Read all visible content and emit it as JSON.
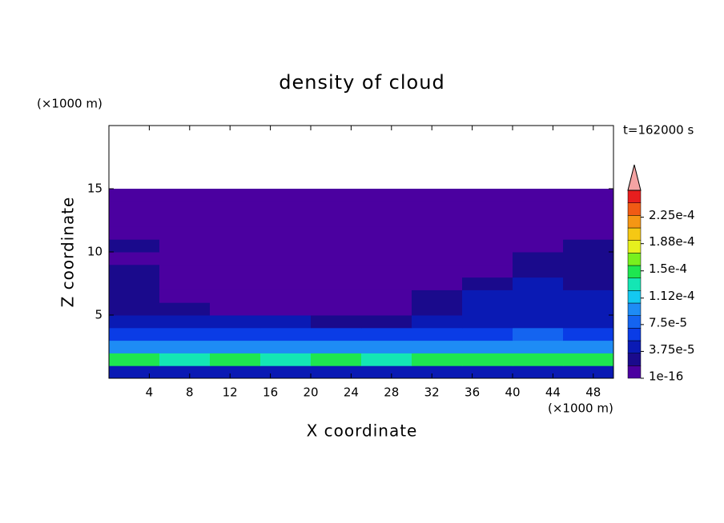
{
  "chart_data": {
    "type": "contour",
    "title": "density of cloud",
    "x_label": "X coordinate",
    "y_label": "Z coordinate",
    "x_unit": "(×1000 m)",
    "y_unit": "(×1000 m)",
    "time_label": "t=162000 s",
    "xlim": [
      0,
      50
    ],
    "ylim": [
      0,
      20
    ],
    "xticks": [
      4,
      8,
      12,
      16,
      20,
      24,
      28,
      32,
      36,
      40,
      44,
      48
    ],
    "yticks": [
      5,
      10,
      15
    ],
    "x": [
      2.5,
      7.5,
      12.5,
      17.5,
      22.5,
      27.5,
      32.5,
      37.5,
      42.5,
      47.5
    ],
    "y": [
      0.5,
      1.5,
      2.5,
      3.5,
      4.5,
      5.5,
      6.5,
      7.5,
      8.5,
      9.5,
      10.5,
      11.5,
      12.5,
      13.5,
      14.5
    ],
    "z": [
      [
        4e-05,
        4e-05,
        4e-05,
        4e-05,
        4e-05,
        4e-05,
        4e-05,
        4e-05,
        4e-05,
        4e-05
      ],
      [
        0.00014,
        0.00013,
        0.00014,
        0.00013,
        0.00014,
        0.00013,
        0.00014,
        0.00014,
        0.00015,
        0.00014
      ],
      [
        9e-05,
        9e-05,
        9e-05,
        9e-05,
        9e-05,
        9e-05,
        9e-05,
        9e-05,
        0.0001,
        9e-05
      ],
      [
        6e-05,
        6e-05,
        6e-05,
        6e-05,
        6e-05,
        6e-05,
        6e-05,
        6e-05,
        7e-05,
        6e-05
      ],
      [
        4e-05,
        4e-05,
        4e-05,
        4e-05,
        3e-05,
        3e-05,
        4e-05,
        5e-05,
        5e-05,
        5e-05
      ],
      [
        3e-05,
        2e-05,
        1e-05,
        1e-05,
        1e-05,
        1e-05,
        2e-05,
        4e-05,
        4e-05,
        4e-05
      ],
      [
        3e-05,
        1e-16,
        1e-16,
        1e-16,
        1e-16,
        1e-16,
        2e-05,
        4e-05,
        4e-05,
        4e-05
      ],
      [
        2e-05,
        1e-16,
        1e-16,
        1e-16,
        1e-16,
        1e-16,
        1e-05,
        3e-05,
        4e-05,
        3e-05
      ],
      [
        2e-05,
        1e-16,
        1e-16,
        1e-16,
        1e-16,
        1e-16,
        1e-16,
        1e-05,
        3e-05,
        3e-05
      ],
      [
        1e-05,
        1e-16,
        1e-16,
        1e-16,
        1e-16,
        1e-16,
        1e-16,
        1e-16,
        2e-05,
        3e-05
      ],
      [
        2e-05,
        1e-16,
        1e-16,
        1e-16,
        1e-16,
        1e-16,
        1e-16,
        1e-16,
        1e-05,
        3e-05
      ],
      [
        1e-16,
        1e-16,
        1e-16,
        1e-16,
        1e-16,
        1e-16,
        1e-16,
        1e-16,
        1e-16,
        1e-16
      ],
      [
        1e-16,
        1e-16,
        1e-16,
        1e-16,
        1e-16,
        1e-16,
        1e-16,
        1e-16,
        1e-16,
        1e-16
      ],
      [
        1e-16,
        1e-16,
        1e-16,
        1e-16,
        1e-16,
        1e-16,
        1e-16,
        1e-16,
        1e-16,
        1e-16
      ],
      [
        1e-16,
        1e-16,
        1e-16,
        1e-16,
        1e-16,
        1e-16,
        1e-16,
        1e-16,
        1e-16,
        1e-16
      ]
    ],
    "colorbar": {
      "lim": [
        0,
        0.0002625
      ],
      "colors": [
        "#4b00a0",
        "#1a0a8c",
        "#0a1ab4",
        "#0a3ce6",
        "#1464f0",
        "#1e8cf5",
        "#14c8f0",
        "#14e6b4",
        "#1ee650",
        "#78f01e",
        "#e6f01e",
        "#f5c814",
        "#f59614",
        "#f05a14",
        "#e61e1e"
      ],
      "extend_color": "#f4a3a3",
      "ticks": [
        {
          "value": 1e-16,
          "label": "1e-16"
        },
        {
          "value": 3.75e-05,
          "label": "3.75e-5"
        },
        {
          "value": 7.5e-05,
          "label": "7.5e-5"
        },
        {
          "value": 0.000112,
          "label": "1.12e-4"
        },
        {
          "value": 0.00015,
          "label": "1.5e-4"
        },
        {
          "value": 0.000188,
          "label": "1.88e-4"
        },
        {
          "value": 0.000225,
          "label": "2.25e-4"
        }
      ]
    }
  }
}
